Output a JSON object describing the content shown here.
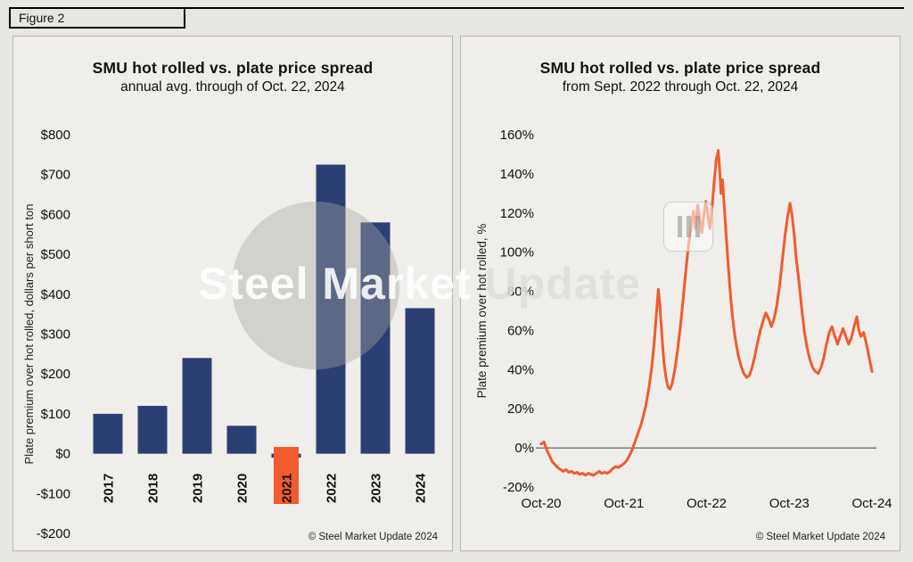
{
  "figure_label": "Figure 2",
  "colors": {
    "bar_blue": "#2c3f74",
    "accent_orange": "#f15b2d",
    "panel_bg": "#f0eeeb",
    "page_bg": "#e8e6e2"
  },
  "watermark": {
    "text_primary": "Steel Market",
    "text_secondary": "Update",
    "logo_icon": "smu-bars-logo"
  },
  "chart_data": [
    {
      "type": "bar",
      "title": "SMU hot rolled vs. plate price spread",
      "subtitle": "annual avg. through of Oct. 22, 2024",
      "ylabel": "Plate premium over hot rolled, dollars per short ton",
      "categories": [
        "2017",
        "2018",
        "2019",
        "2020",
        "2021",
        "2022",
        "2023",
        "2024"
      ],
      "values": [
        100,
        120,
        240,
        70,
        -10,
        725,
        580,
        365
      ],
      "ylim": [
        -200,
        800
      ],
      "ytick_step": 100,
      "ytick_labels": [
        "$800",
        "$700",
        "$600",
        "$500",
        "$400",
        "$300",
        "$200",
        "$100",
        "$0",
        "-$100",
        "-$200"
      ],
      "bar_color": "#2c3f74",
      "highlighted_category": "2021",
      "highlight_color": "#f15b2d",
      "grid": false,
      "legend": "none",
      "footer": "© Steel Market Update 2024"
    },
    {
      "type": "line",
      "title": "SMU hot rolled vs. plate price spread",
      "subtitle": "from Sept. 2022 through Oct. 22, 2024",
      "ylabel": "Plate premium over hot rolled, %",
      "x_tick_labels": [
        "Oct-20",
        "Oct-21",
        "Oct-22",
        "Oct-23",
        "Oct-24"
      ],
      "x_tick_months": [
        0,
        12,
        24,
        36,
        48
      ],
      "x_range_months": [
        0,
        48
      ],
      "ylim": [
        -20,
        160
      ],
      "ytick_step": 20,
      "ytick_labels": [
        "160%",
        "140%",
        "120%",
        "100%",
        "80%",
        "60%",
        "40%",
        "20%",
        "0%",
        "-20%"
      ],
      "line_color": "#f15b2d",
      "zero_line": true,
      "grid": false,
      "legend": "none",
      "footer": "© Steel Market Update 2024",
      "series": [
        {
          "name": "Plate premium over hot rolled, %",
          "points": [
            [
              0,
              2
            ],
            [
              0.4,
              3
            ],
            [
              0.8,
              -1
            ],
            [
              1.2,
              -4
            ],
            [
              1.6,
              -7
            ],
            [
              2,
              -8.5
            ],
            [
              2.4,
              -10
            ],
            [
              2.8,
              -11
            ],
            [
              3.2,
              -12
            ],
            [
              3.6,
              -11
            ],
            [
              4,
              -12.5
            ],
            [
              4.4,
              -12
            ],
            [
              4.8,
              -13
            ],
            [
              5.2,
              -12.5
            ],
            [
              5.6,
              -13.5
            ],
            [
              6,
              -13
            ],
            [
              6.4,
              -14
            ],
            [
              6.8,
              -13
            ],
            [
              7.2,
              -13.5
            ],
            [
              7.6,
              -14
            ],
            [
              8,
              -13
            ],
            [
              8.4,
              -12
            ],
            [
              8.8,
              -13
            ],
            [
              9.2,
              -12.5
            ],
            [
              9.6,
              -13
            ],
            [
              10,
              -12
            ],
            [
              10.4,
              -10.5
            ],
            [
              10.8,
              -9.5
            ],
            [
              11.2,
              -10
            ],
            [
              11.6,
              -9
            ],
            [
              12,
              -8
            ],
            [
              12.4,
              -6.5
            ],
            [
              12.8,
              -4
            ],
            [
              13.2,
              -1
            ],
            [
              13.6,
              3
            ],
            [
              14,
              7
            ],
            [
              14.4,
              11
            ],
            [
              14.8,
              16
            ],
            [
              15.2,
              22
            ],
            [
              15.6,
              30
            ],
            [
              16,
              40
            ],
            [
              16.4,
              54
            ],
            [
              16.7,
              68
            ],
            [
              17,
              81
            ],
            [
              17.2,
              74
            ],
            [
              17.5,
              58
            ],
            [
              17.8,
              44
            ],
            [
              18.1,
              36
            ],
            [
              18.4,
              31
            ],
            [
              18.7,
              30
            ],
            [
              19,
              33
            ],
            [
              19.4,
              40
            ],
            [
              19.8,
              50
            ],
            [
              20.2,
              62
            ],
            [
              20.6,
              76
            ],
            [
              21,
              91
            ],
            [
              21.4,
              104
            ],
            [
              21.8,
              114
            ],
            [
              22.1,
              121
            ],
            [
              22.4,
              112
            ],
            [
              22.7,
              124
            ],
            [
              23,
              117
            ],
            [
              23.3,
              110
            ],
            [
              23.6,
              119
            ],
            [
              23.9,
              126
            ],
            [
              24.2,
              118
            ],
            [
              24.5,
              112
            ],
            [
              24.8,
              123
            ],
            [
              25.1,
              136
            ],
            [
              25.4,
              147
            ],
            [
              25.7,
              152
            ],
            [
              25.9,
              142
            ],
            [
              26.1,
              130
            ],
            [
              26.3,
              137
            ],
            [
              26.5,
              127
            ],
            [
              26.8,
              111
            ],
            [
              27.1,
              95
            ],
            [
              27.4,
              81
            ],
            [
              27.7,
              69
            ],
            [
              28,
              60
            ],
            [
              28.3,
              53
            ],
            [
              28.6,
              47
            ],
            [
              29,
              42
            ],
            [
              29.4,
              38
            ],
            [
              29.8,
              36
            ],
            [
              30.2,
              37
            ],
            [
              30.6,
              41
            ],
            [
              31,
              47
            ],
            [
              31.4,
              54
            ],
            [
              31.8,
              60
            ],
            [
              32.2,
              65
            ],
            [
              32.6,
              69
            ],
            [
              33,
              66
            ],
            [
              33.4,
              62
            ],
            [
              33.8,
              66
            ],
            [
              34.2,
              73
            ],
            [
              34.6,
              83
            ],
            [
              35,
              96
            ],
            [
              35.4,
              109
            ],
            [
              35.8,
              119
            ],
            [
              36.1,
              125
            ],
            [
              36.4,
              119
            ],
            [
              36.7,
              109
            ],
            [
              37,
              97
            ],
            [
              37.4,
              85
            ],
            [
              37.8,
              71
            ],
            [
              38.2,
              59
            ],
            [
              38.6,
              51
            ],
            [
              39,
              45
            ],
            [
              39.4,
              41
            ],
            [
              39.8,
              39
            ],
            [
              40.2,
              38
            ],
            [
              40.6,
              41
            ],
            [
              41,
              46
            ],
            [
              41.4,
              53
            ],
            [
              41.8,
              59
            ],
            [
              42.2,
              62
            ],
            [
              42.6,
              57
            ],
            [
              43,
              53
            ],
            [
              43.4,
              57
            ],
            [
              43.8,
              61
            ],
            [
              44.2,
              57
            ],
            [
              44.6,
              53
            ],
            [
              45,
              56
            ],
            [
              45.4,
              62
            ],
            [
              45.8,
              67
            ],
            [
              46.1,
              60
            ],
            [
              46.4,
              57
            ],
            [
              46.8,
              59
            ],
            [
              47.2,
              53
            ],
            [
              47.6,
              46
            ],
            [
              48,
              39
            ]
          ]
        }
      ]
    }
  ]
}
